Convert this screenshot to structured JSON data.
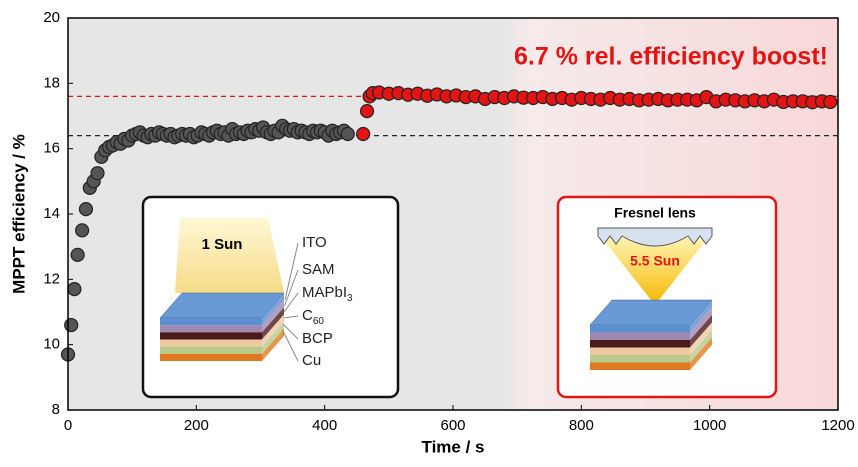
{
  "chart_data": {
    "type": "scatter",
    "xlabel": "Time / s",
    "ylabel": "MPPT efficiency / %",
    "xlim": [
      0,
      1200
    ],
    "ylim": [
      8,
      20
    ],
    "xticks": [
      0,
      200,
      400,
      600,
      800,
      1000,
      1200
    ],
    "yticks": [
      8,
      10,
      12,
      14,
      16,
      18,
      20
    ],
    "series": [
      {
        "color": "#555555",
        "x": [
          0,
          5,
          10,
          15,
          22,
          28,
          34,
          40,
          46,
          52,
          58,
          64,
          70,
          76,
          82,
          88,
          94,
          100,
          106,
          112,
          118,
          124,
          130,
          136,
          142,
          148,
          154,
          160,
          166,
          172,
          178,
          184,
          190,
          196,
          202,
          208,
          214,
          220,
          226,
          232,
          238,
          244,
          250,
          256,
          262,
          268,
          274,
          280,
          286,
          292,
          298,
          304,
          310,
          316,
          322,
          328,
          334,
          340,
          346,
          352,
          358,
          364,
          370,
          376,
          382,
          388,
          394,
          400,
          406,
          412,
          418,
          424,
          430,
          436
        ],
        "values": [
          9.7,
          10.6,
          11.7,
          12.75,
          13.5,
          14.15,
          14.8,
          15.0,
          15.25,
          15.75,
          15.95,
          16.05,
          16.1,
          16.2,
          16.15,
          16.3,
          16.25,
          16.4,
          16.45,
          16.5,
          16.4,
          16.35,
          16.45,
          16.4,
          16.5,
          16.45,
          16.4,
          16.45,
          16.35,
          16.4,
          16.45,
          16.4,
          16.45,
          16.35,
          16.4,
          16.5,
          16.45,
          16.4,
          16.5,
          16.55,
          16.45,
          16.5,
          16.4,
          16.6,
          16.45,
          16.5,
          16.45,
          16.55,
          16.5,
          16.6,
          16.55,
          16.65,
          16.5,
          16.45,
          16.55,
          16.5,
          16.7,
          16.6,
          16.55,
          16.6,
          16.5,
          16.55,
          16.5,
          16.45,
          16.55,
          16.5,
          16.55,
          16.5,
          16.4,
          16.55,
          16.45,
          16.5,
          16.55,
          16.45
        ]
      },
      {
        "color": "#e31414",
        "x": [
          460,
          466,
          470,
          475,
          485,
          500,
          515,
          530,
          545,
          560,
          575,
          590,
          605,
          620,
          635,
          650,
          665,
          680,
          695,
          710,
          725,
          740,
          755,
          770,
          785,
          800,
          815,
          830,
          845,
          860,
          875,
          890,
          905,
          920,
          935,
          950,
          965,
          980,
          995,
          1010,
          1025,
          1040,
          1055,
          1070,
          1085,
          1100,
          1115,
          1130,
          1145,
          1160,
          1175,
          1188
        ],
        "values": [
          16.45,
          17.15,
          17.6,
          17.7,
          17.72,
          17.68,
          17.7,
          17.65,
          17.68,
          17.62,
          17.66,
          17.6,
          17.63,
          17.58,
          17.6,
          17.52,
          17.58,
          17.55,
          17.6,
          17.56,
          17.55,
          17.58,
          17.52,
          17.55,
          17.5,
          17.55,
          17.52,
          17.5,
          17.55,
          17.5,
          17.52,
          17.48,
          17.5,
          17.52,
          17.48,
          17.5,
          17.5,
          17.48,
          17.58,
          17.45,
          17.5,
          17.48,
          17.45,
          17.48,
          17.45,
          17.5,
          17.43,
          17.45,
          17.45,
          17.42,
          17.45,
          17.43
        ]
      }
    ],
    "reference_lines": [
      {
        "value": 16.4,
        "color": "#222222"
      },
      {
        "value": 17.6,
        "color": "#e31414"
      }
    ],
    "annotation": "6.7 % rel. efficiency boost!",
    "inset_left": {
      "light": "1 Sun",
      "layers": [
        {
          "text": "ITO"
        },
        {
          "text": "SAM"
        },
        {
          "text": "MAPbI",
          "sub": "3"
        },
        {
          "text": "C",
          "sub": "60"
        },
        {
          "text": "BCP"
        },
        {
          "text": "Cu"
        }
      ]
    },
    "inset_right": {
      "lens": "Fresnel lens",
      "light": "5.5 Sun"
    }
  }
}
